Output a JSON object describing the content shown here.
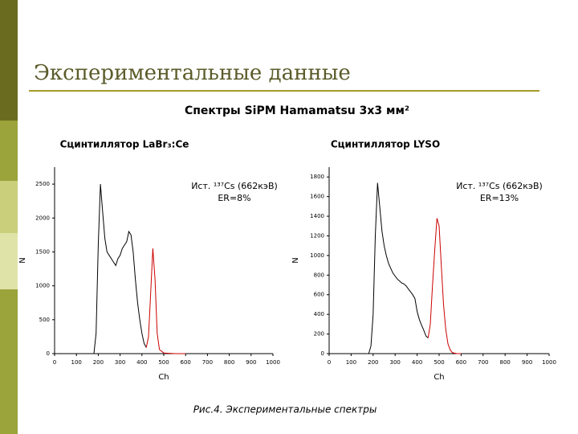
{
  "slide": {
    "title": "Экспериментальные данные",
    "subtitle": "Спектры SiPM Hamamatsu 3х3 мм²",
    "caption": "Рис.4. Экспериментальные спектры"
  },
  "chart_data": [
    {
      "type": "line",
      "title": "Сцинтиллятор LaBr₃:Ce",
      "x_label": "Ch",
      "y_label": "N",
      "annotations": [
        "Ист. ¹³⁷Cs (662кэВ)",
        "ER=8%"
      ],
      "x": [
        180,
        190,
        200,
        210,
        220,
        230,
        240,
        250,
        260,
        270,
        280,
        290,
        300,
        310,
        320,
        330,
        340,
        350,
        360,
        370,
        380,
        390,
        400,
        410,
        420,
        430,
        440,
        450,
        460,
        470,
        480,
        500,
        550,
        600
      ],
      "series": [
        {
          "color": "#000000",
          "values": [
            0,
            300,
            1600,
            2500,
            2100,
            1700,
            1500,
            1450,
            1400,
            1350,
            1300,
            1400,
            1450,
            1550,
            1600,
            1650,
            1800,
            1750,
            1500,
            1100,
            750,
            500,
            300,
            150,
            90,
            null,
            null,
            null,
            null,
            null,
            null,
            null,
            null,
            null
          ]
        },
        {
          "color": "#cc0000",
          "values": [
            null,
            null,
            null,
            null,
            null,
            null,
            null,
            null,
            null,
            null,
            null,
            null,
            null,
            null,
            null,
            null,
            null,
            null,
            null,
            null,
            null,
            null,
            null,
            null,
            90,
            250,
            900,
            1550,
            1100,
            300,
            60,
            10,
            0,
            0
          ]
        }
      ],
      "xlim": [
        0,
        1000
      ],
      "xticks": [
        0,
        100,
        200,
        300,
        400,
        500,
        600,
        700,
        800,
        900,
        1000
      ],
      "ylim": [
        0,
        2750
      ],
      "yticks": [
        0,
        500,
        1000,
        1500,
        2000,
        2500
      ]
    },
    {
      "type": "line",
      "title": "Сцинтиллятор LYSO",
      "x_label": "Ch",
      "y_label": "N",
      "annotations": [
        "Ист. ¹³⁷Cs (662кэВ)",
        "ER=13%"
      ],
      "x": [
        180,
        190,
        200,
        210,
        220,
        230,
        240,
        250,
        260,
        270,
        280,
        290,
        300,
        310,
        320,
        330,
        340,
        350,
        360,
        370,
        380,
        390,
        400,
        410,
        420,
        430,
        440,
        450,
        460,
        470,
        480,
        490,
        500,
        510,
        520,
        530,
        540,
        550,
        560,
        580,
        600
      ],
      "series": [
        {
          "color": "#000000",
          "values": [
            0,
            80,
            400,
            1200,
            1740,
            1500,
            1250,
            1100,
            1000,
            920,
            870,
            820,
            790,
            760,
            740,
            720,
            710,
            690,
            660,
            630,
            600,
            560,
            430,
            350,
            290,
            240,
            180,
            160,
            null,
            null,
            null,
            null,
            null,
            null,
            null,
            null,
            null,
            null,
            null,
            null,
            null
          ]
        },
        {
          "color": "#cc0000",
          "values": [
            null,
            null,
            null,
            null,
            null,
            null,
            null,
            null,
            null,
            null,
            null,
            null,
            null,
            null,
            null,
            null,
            null,
            null,
            null,
            null,
            null,
            null,
            null,
            null,
            null,
            null,
            null,
            160,
            300,
            700,
            1050,
            1380,
            1300,
            900,
            500,
            250,
            100,
            40,
            10,
            0,
            0
          ]
        }
      ],
      "xlim": [
        0,
        1000
      ],
      "xticks": [
        0,
        100,
        200,
        300,
        400,
        500,
        600,
        700,
        800,
        900,
        1000
      ],
      "ylim": [
        0,
        1900
      ],
      "yticks": [
        0,
        200,
        400,
        600,
        800,
        1000,
        1200,
        1400,
        1600,
        1800
      ]
    }
  ]
}
